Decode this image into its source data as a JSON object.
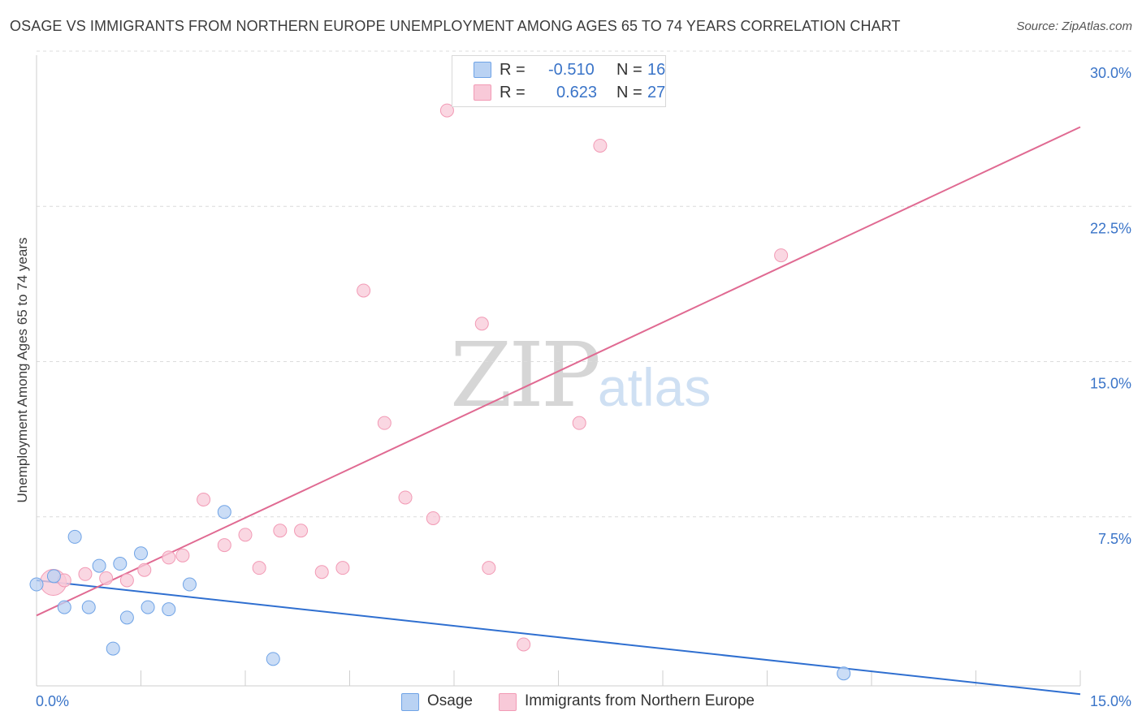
{
  "chart_data": {
    "type": "scatter",
    "title": "OSAGE VS IMMIGRANTS FROM NORTHERN EUROPE UNEMPLOYMENT AMONG AGES 65 TO 74 YEARS CORRELATION CHART",
    "source": "Source: ZipAtlas.com",
    "xlabel": "",
    "ylabel": "Unemployment Among Ages 65 to 74 years",
    "xlim": [
      0,
      15
    ],
    "ylim": [
      0,
      30
    ],
    "x_tick_labels": [
      "0.0%",
      "15.0%"
    ],
    "y_tick_values": [
      7.5,
      15.0,
      22.5,
      30.0
    ],
    "y_tick_labels": [
      "7.5%",
      "15.0%",
      "22.5%",
      "30.0%"
    ],
    "grid": true,
    "watermark": {
      "zip": "ZIP",
      "atlas": "atlas"
    },
    "legend": {
      "rows": [
        {
          "r_label": "R =",
          "r_value": "-0.510",
          "n_label": "N =",
          "n_value": "16"
        },
        {
          "r_label": "R =",
          "r_value": "0.623",
          "n_label": "N =",
          "n_value": "27"
        }
      ]
    },
    "series": [
      {
        "name": "Osage",
        "color": "#6fa3e6",
        "fill": "#b9d2f3",
        "trend_color": "#2f6fd0",
        "trend": [
          [
            0,
            5.1
          ],
          [
            15,
            -0.4
          ]
        ],
        "points": [
          [
            0.0,
            4.9
          ],
          [
            0.25,
            5.3
          ],
          [
            0.4,
            3.8
          ],
          [
            0.55,
            7.2
          ],
          [
            0.75,
            3.8
          ],
          [
            0.9,
            5.8
          ],
          [
            1.1,
            1.8
          ],
          [
            1.2,
            5.9
          ],
          [
            1.3,
            3.3
          ],
          [
            1.5,
            6.4
          ],
          [
            1.6,
            3.8
          ],
          [
            1.9,
            3.7
          ],
          [
            2.2,
            4.9
          ],
          [
            2.7,
            8.4
          ],
          [
            3.4,
            1.3
          ],
          [
            11.6,
            0.6
          ]
        ]
      },
      {
        "name": "Immigrants from Northern Europe",
        "color": "#f29ab5",
        "fill": "#f8c9d8",
        "trend_color": "#e06a92",
        "trend": [
          [
            0,
            3.4
          ],
          [
            15,
            27.0
          ]
        ],
        "points": [
          [
            0.1,
            5.0
          ],
          [
            0.4,
            5.1
          ],
          [
            0.7,
            5.4
          ],
          [
            1.0,
            5.2
          ],
          [
            1.3,
            5.1
          ],
          [
            1.55,
            5.6
          ],
          [
            1.9,
            6.2
          ],
          [
            2.1,
            6.3
          ],
          [
            2.4,
            9.0
          ],
          [
            2.7,
            6.8
          ],
          [
            3.0,
            7.3
          ],
          [
            3.2,
            5.7
          ],
          [
            3.5,
            7.5
          ],
          [
            3.8,
            7.5
          ],
          [
            4.1,
            5.5
          ],
          [
            4.4,
            5.7
          ],
          [
            4.7,
            19.1
          ],
          [
            5.0,
            12.7
          ],
          [
            5.3,
            9.1
          ],
          [
            5.7,
            8.1
          ],
          [
            5.9,
            27.8
          ],
          [
            6.4,
            17.5
          ],
          [
            6.5,
            5.7
          ],
          [
            7.0,
            2.0
          ],
          [
            7.8,
            12.7
          ],
          [
            8.1,
            26.1
          ],
          [
            10.7,
            20.8
          ]
        ]
      }
    ]
  }
}
